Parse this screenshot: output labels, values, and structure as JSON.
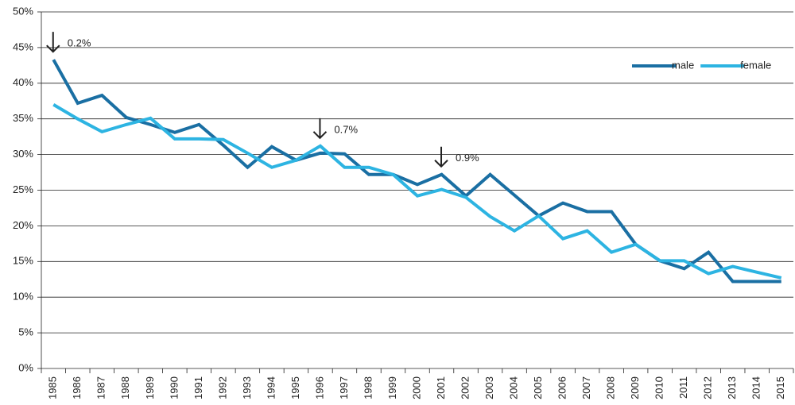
{
  "chart_data": {
    "type": "line",
    "categories": [
      "1985",
      "1986",
      "1987",
      "1988",
      "1989",
      "1990",
      "1991",
      "1992",
      "1993",
      "1994",
      "1995",
      "1996",
      "1997",
      "1998",
      "1999",
      "2000",
      "2001",
      "2002",
      "2003",
      "2004",
      "2005",
      "2006",
      "2007",
      "2008",
      "2009",
      "2010",
      "2011",
      "2012",
      "2013",
      "2014",
      "2015"
    ],
    "series": [
      {
        "name": "male",
        "color": "#1a6fa3",
        "values": [
          43.3,
          37.2,
          38.3,
          35.2,
          34.2,
          33.1,
          34.2,
          31.3,
          28.2,
          31.1,
          29.2,
          30.2,
          30.1,
          27.2,
          27.2,
          25.8,
          27.2,
          24.2,
          27.2,
          24.3,
          21.4,
          23.2,
          22.0,
          22.0,
          17.4,
          15.1,
          14.0,
          16.3,
          12.2,
          12.2,
          12.2
        ]
      },
      {
        "name": "female",
        "color": "#2db4e2",
        "values": [
          37.0,
          35.0,
          33.2,
          34.2,
          35.1,
          32.2,
          32.2,
          32.1,
          30.2,
          28.2,
          29.2,
          31.2,
          28.2,
          28.2,
          27.2,
          24.2,
          25.1,
          24.0,
          21.3,
          19.3,
          21.4,
          18.2,
          19.3,
          16.3,
          17.4,
          15.1,
          15.1,
          13.3,
          14.3,
          13.5,
          12.7
        ]
      }
    ],
    "ylim": [
      0,
      50
    ],
    "yticks": [
      {
        "value": 0,
        "label": "0%"
      },
      {
        "value": 5,
        "label": "5%"
      },
      {
        "value": 10,
        "label": "10%"
      },
      {
        "value": 15,
        "label": "15%"
      },
      {
        "value": 20,
        "label": "20%"
      },
      {
        "value": 25,
        "label": "25%"
      },
      {
        "value": 30,
        "label": "30%"
      },
      {
        "value": 35,
        "label": "35%"
      },
      {
        "value": 40,
        "label": "40%"
      },
      {
        "value": 45,
        "label": "45%"
      },
      {
        "value": 50,
        "label": "50%"
      }
    ],
    "grid": true,
    "legend": "upper right",
    "annotations": [
      {
        "category": "1985",
        "text": "0.2%"
      },
      {
        "category": "1996",
        "text": "0.7%"
      },
      {
        "category": "2001",
        "text": "0.9%"
      }
    ]
  }
}
